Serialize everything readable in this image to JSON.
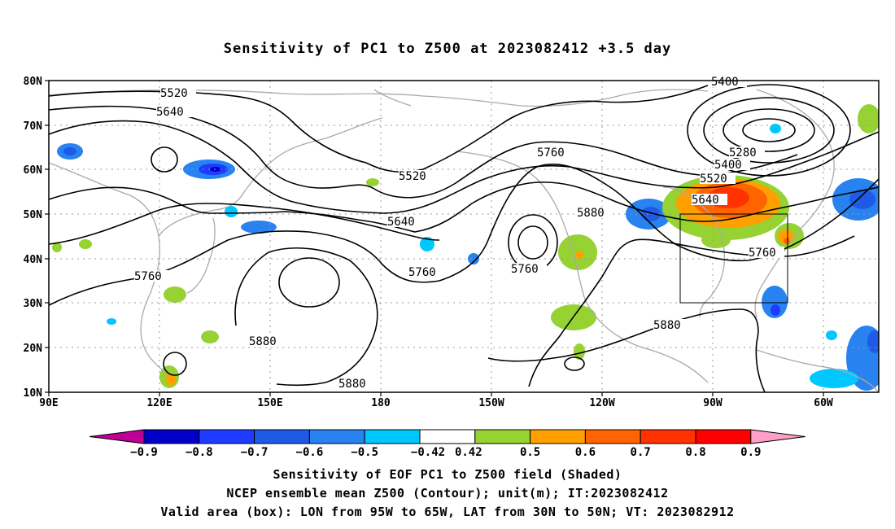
{
  "title": "Sensitivity of PC1 to Z500 at 2023082412 +3.5 day",
  "axes": {
    "lat_labels": [
      "80N",
      "70N",
      "60N",
      "50N",
      "40N",
      "30N",
      "20N",
      "10N"
    ],
    "lon_labels": [
      "90E",
      "120E",
      "150E",
      "180",
      "150W",
      "120W",
      "90W",
      "60W"
    ],
    "lat_range": [
      10,
      80
    ],
    "lon_range_deg_east": [
      90,
      315
    ],
    "grid": "dotted"
  },
  "contour_labels": [
    "5400",
    "5520",
    "5640",
    "5280",
    "5400",
    "5520",
    "5640",
    "5760",
    "5520",
    "5640",
    "5760",
    "5760",
    "5760",
    "5880",
    "5760",
    "5880",
    "5880",
    "5880"
  ],
  "colorbar": {
    "labels": [
      "−0.9",
      "−0.8",
      "−0.7",
      "−0.6",
      "−0.5",
      "−0.42",
      "0.42",
      "0.5",
      "0.6",
      "0.7",
      "0.8",
      "0.9"
    ],
    "colors": [
      "#be0096",
      "#0000c8",
      "#1e3cff",
      "#1f5ae6",
      "#2882f0",
      "#00c8ff",
      "#ffffff",
      "#96d232",
      "#ffa000",
      "#ff6400",
      "#ff3200",
      "#ff0000",
      "#ffa0c8"
    ]
  },
  "valid_box": {
    "lon": [
      "95W",
      "65W"
    ],
    "lat": [
      "30N",
      "50N"
    ]
  },
  "captions": {
    "line1": "Sensitivity of EOF PC1 to Z500 field (Shaded)",
    "line2": "NCEP ensemble mean Z500 (Contour); unit(m); IT:2023082412",
    "line3": "Valid area (box): LON from 95W to 65W, LAT from 30N to 50N; VT: 2023082912"
  }
}
